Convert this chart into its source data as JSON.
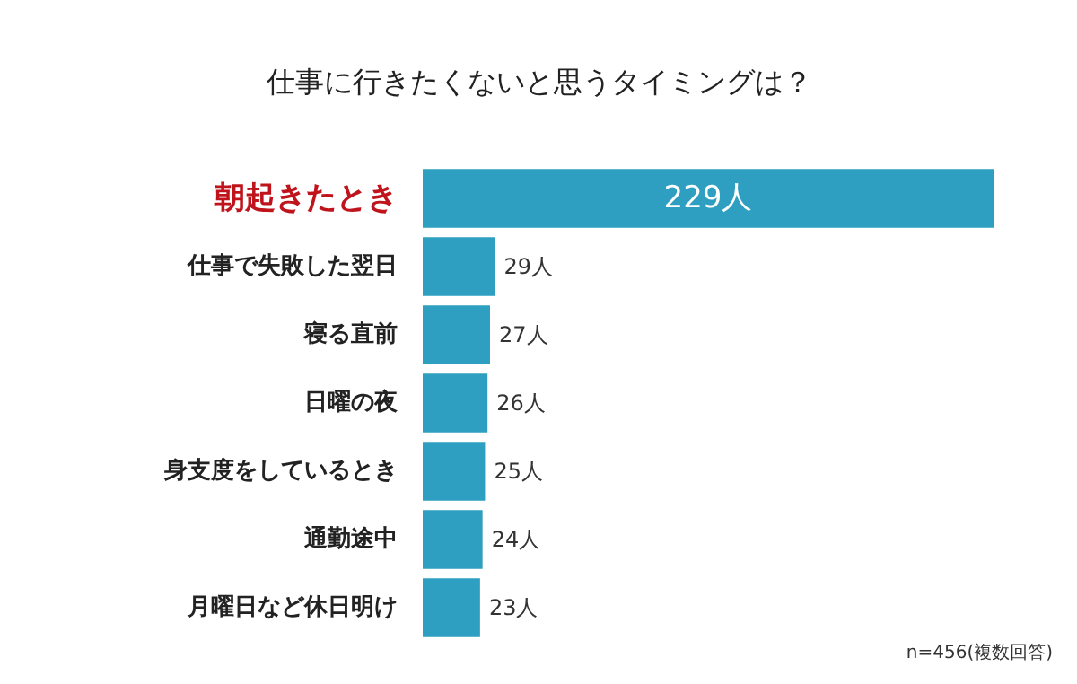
{
  "chart_data": {
    "type": "bar",
    "orientation": "horizontal",
    "title": "仕事に行きたくないと思うタイミングは？",
    "categories": [
      "朝起きたとき",
      "仕事で失敗した翌日",
      "寝る直前",
      "日曜の夜",
      "身支度をしているとき",
      "通勤途中",
      "月曜日など休日明け"
    ],
    "series": [
      {
        "color": "#2e9fc0",
        "values": [
          229,
          29,
          27,
          26,
          25,
          24,
          23
        ],
        "value_labels": [
          "229人",
          "29人",
          "27人",
          "26人",
          "25人",
          "24人",
          "23人"
        ]
      }
    ],
    "annotations": [
      "n=456(複数回答)"
    ]
  }
}
